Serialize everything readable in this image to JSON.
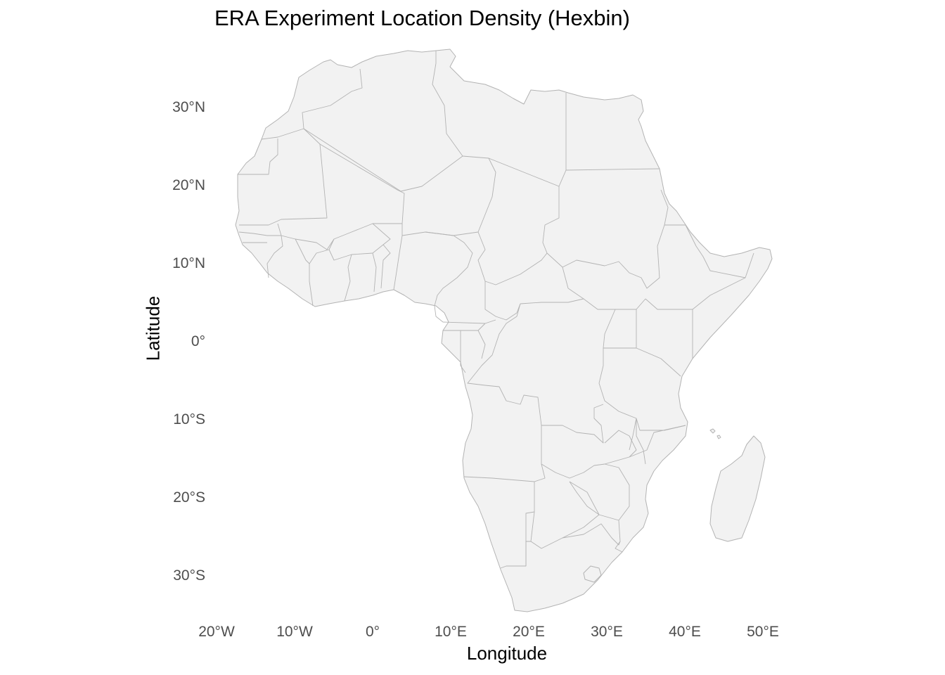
{
  "title": "ERA Experiment Location Density (Hexbin)",
  "axes": {
    "x_title": "Longitude",
    "y_title": "Latitude",
    "x_ticks": [
      {
        "value": -20,
        "label": "20°W"
      },
      {
        "value": -10,
        "label": "10°W"
      },
      {
        "value": 0,
        "label": "0°"
      },
      {
        "value": 10,
        "label": "10°E"
      },
      {
        "value": 20,
        "label": "20°E"
      },
      {
        "value": 30,
        "label": "30°E"
      },
      {
        "value": 40,
        "label": "40°E"
      },
      {
        "value": 50,
        "label": "50°E"
      }
    ],
    "y_ticks": [
      {
        "value": 30,
        "label": "30°N"
      },
      {
        "value": 20,
        "label": "20°N"
      },
      {
        "value": 10,
        "label": "10°N"
      },
      {
        "value": 0,
        "label": "0°"
      },
      {
        "value": -10,
        "label": "10°S"
      },
      {
        "value": -20,
        "label": "20°S"
      },
      {
        "value": -30,
        "label": "30°S"
      }
    ]
  },
  "map": {
    "region": "Africa",
    "land_color": "#f2f2f2",
    "border_color": "#b3b3b3",
    "background": "#ffffff",
    "grid": false
  }
}
